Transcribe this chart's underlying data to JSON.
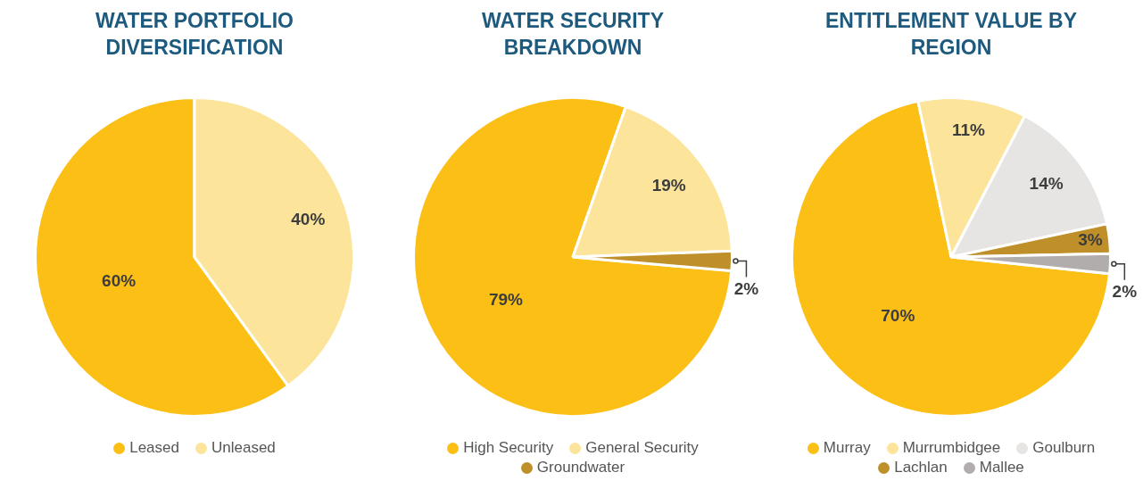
{
  "chart_data": [
    {
      "type": "pie",
      "title": "WATER PORTFOLIO DIVERSIFICATION",
      "categories": [
        "Leased",
        "Unleased"
      ],
      "values": [
        60,
        40
      ],
      "value_labels": [
        "60%",
        "40%"
      ],
      "colors": [
        "#fbbf16",
        "#fce49a"
      ],
      "legend": "bottom"
    },
    {
      "type": "pie",
      "title": "WATER SECURITY BREAKDOWN",
      "categories": [
        "High Security",
        "General Security",
        "Groundwater"
      ],
      "values": [
        79,
        19,
        2
      ],
      "value_labels": [
        "79%",
        "19%",
        "2%"
      ],
      "colors": [
        "#fbbf16",
        "#fce49a",
        "#bf8f2a"
      ],
      "legend": "bottom"
    },
    {
      "type": "pie",
      "title": "ENTITLEMENT VALUE BY REGION",
      "categories": [
        "Murray",
        "Murrumbidgee",
        "Goulburn",
        "Lachlan",
        "Mallee"
      ],
      "values": [
        70,
        11,
        14,
        3,
        2
      ],
      "value_labels": [
        "70%",
        "11%",
        "14%",
        "3%",
        "2%"
      ],
      "colors": [
        "#fbbf16",
        "#fce49a",
        "#e6e5e3",
        "#bf8f2a",
        "#b0adac"
      ],
      "legend": "bottom"
    }
  ]
}
